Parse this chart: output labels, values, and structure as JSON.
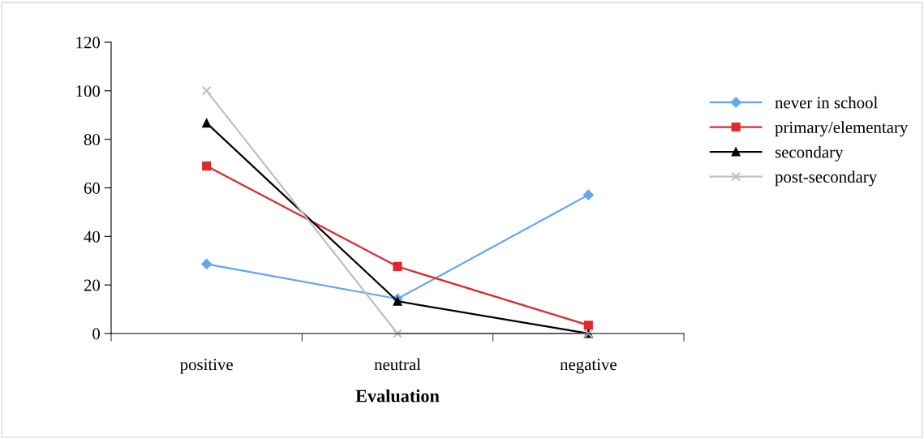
{
  "chart_data": {
    "type": "line",
    "xlabel": "Evaluation",
    "categories": [
      "positive",
      "neutral",
      "negative"
    ],
    "series": [
      {
        "name": "never in school",
        "color": "#65a6f4",
        "marker": "diamond",
        "values": [
          28.6,
          14.3,
          57.1
        ]
      },
      {
        "name": "primary/elementary",
        "color": "#e0282e",
        "marker": "square",
        "values": [
          69.0,
          27.6,
          3.4
        ]
      },
      {
        "name": "secondary",
        "color": "#000000",
        "marker": "triangle",
        "values": [
          86.7,
          13.3,
          0
        ]
      },
      {
        "name": "post-secondary",
        "color": "#bfbfbf",
        "marker": "cross",
        "values": [
          100,
          0,
          0
        ]
      }
    ],
    "ylim": [
      0,
      120
    ],
    "yticks": [
      0,
      20,
      40,
      60,
      80,
      100,
      120
    ],
    "grid": false,
    "legend": "right",
    "line_style": "solid"
  }
}
